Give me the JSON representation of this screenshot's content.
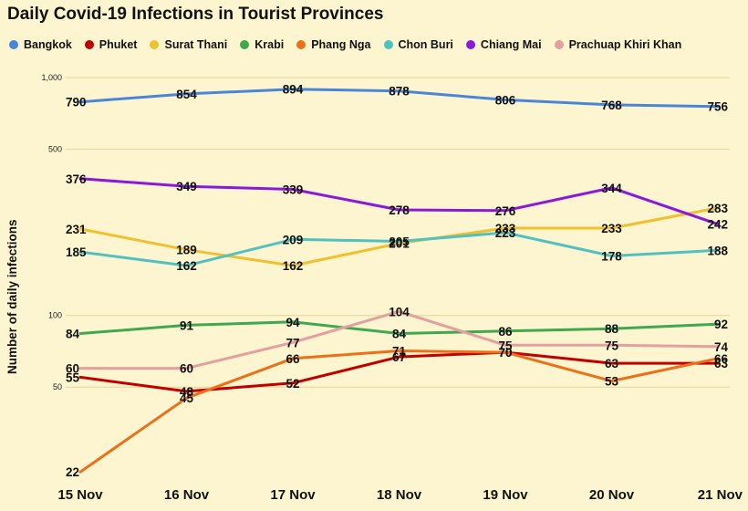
{
  "chart_data": {
    "type": "line",
    "title": "Daily Covid-19 Infections in Tourist Provinces",
    "ylabel": "Number of daily infections",
    "xlabel": "",
    "y_scale": "log",
    "ylim": [
      20,
      1000
    ],
    "y_ticks": [
      {
        "value": 1000,
        "label": "1,000"
      },
      {
        "value": 500,
        "label": "500"
      },
      {
        "value": 100,
        "label": "100"
      },
      {
        "value": 50,
        "label": "50"
      }
    ],
    "categories": [
      "15 Nov",
      "16 Nov",
      "17 Nov",
      "18 Nov",
      "19 Nov",
      "20 Nov",
      "21 Nov"
    ],
    "legend_position": "top",
    "grid": "horizontal",
    "series": [
      {
        "name": "Bangkok",
        "color": "#4a86d8",
        "values": [
          790,
          854,
          894,
          878,
          806,
          768,
          756
        ]
      },
      {
        "name": "Phuket",
        "color": "#c00000",
        "values": [
          55,
          48,
          52,
          67,
          70,
          63,
          63
        ]
      },
      {
        "name": "Surat Thani",
        "color": "#f0c030",
        "values": [
          231,
          189,
          162,
          201,
          233,
          233,
          283
        ]
      },
      {
        "name": "Krabi",
        "color": "#3fa850",
        "values": [
          84,
          91,
          94,
          84,
          86,
          88,
          92
        ]
      },
      {
        "name": "Phang Nga",
        "color": "#ec7019",
        "values": [
          22,
          45,
          66,
          71,
          70,
          53,
          66
        ]
      },
      {
        "name": "Chon Buri",
        "color": "#4fc1c0",
        "values": [
          185,
          162,
          209,
          205,
          223,
          178,
          188
        ]
      },
      {
        "name": "Chiang Mai",
        "color": "#8a1ad8",
        "values": [
          376,
          349,
          339,
          278,
          276,
          344,
          242
        ]
      },
      {
        "name": "Prachuap Khiri Khan",
        "color": "#e4a0a0",
        "values": [
          60,
          60,
          77,
          104,
          75,
          75,
          74
        ]
      }
    ]
  }
}
